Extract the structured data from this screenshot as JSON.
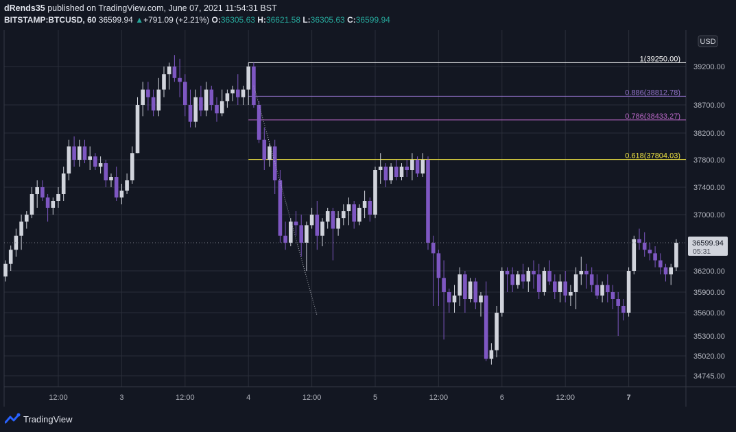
{
  "header": {
    "published_by": "dRends35",
    "published_text": " published on TradingView.com, June 07, 2021 11:54:31 BST",
    "symbol": "BITSTAMP:BTCUSD, 60",
    "last": "36599.94",
    "change_arrow": "▲",
    "change": "+791.09 (+2.21%)",
    "o_label": "O:",
    "o_value": "36305.63",
    "h_label": "H:",
    "h_value": "36621.58",
    "l_label": "L:",
    "l_value": "36305.63",
    "c_label": "C:",
    "c_value": "36599.94"
  },
  "footer": {
    "brand": "TradingView"
  },
  "colors": {
    "background": "#131722",
    "grid": "#2a2e39",
    "up_candle": "#d1d4dc",
    "down_candle": "#7e57c2",
    "fib_1": "#ffffff",
    "fib_0886": "#9575cd",
    "fib_0786": "#ba68c8",
    "fib_0618": "#f0e442",
    "price_tag_bg": "#d1d4dc"
  },
  "chart_data": {
    "type": "candlestick",
    "currency_label": "USD",
    "price_tag": {
      "price": "36599.94",
      "countdown": "05:31"
    },
    "y_ticks": [
      39200,
      38700,
      38200,
      37800,
      37400,
      37000,
      36200,
      35900,
      35600,
      35300,
      35020,
      34745
    ],
    "y_tick_labels": [
      "39200.00",
      "38700.00",
      "38200.00",
      "37800.00",
      "37400.00",
      "37000.00",
      "36200.00",
      "35900.00",
      "35600.00",
      "35300.00",
      "35020.00",
      "34745.00"
    ],
    "x_ticks": [
      {
        "bar": 10,
        "label": "12:00"
      },
      {
        "bar": 22,
        "label": "3"
      },
      {
        "bar": 34,
        "label": "12:00"
      },
      {
        "bar": 46,
        "label": "4"
      },
      {
        "bar": 58,
        "label": "12:00"
      },
      {
        "bar": 70,
        "label": "5"
      },
      {
        "bar": 82,
        "label": "12:00"
      },
      {
        "bar": 94,
        "label": "6"
      },
      {
        "bar": 106,
        "label": "12:00"
      },
      {
        "bar": 118,
        "label": "7"
      }
    ],
    "fib_levels": [
      {
        "ratio": "1",
        "price": 39250.0,
        "label": "1(39250.00)",
        "color": "#ffffff"
      },
      {
        "ratio": "0.886",
        "price": 38812.78,
        "label": "0.886(38812.78)",
        "color": "#9575cd"
      },
      {
        "ratio": "0.786",
        "price": 38433.27,
        "label": "0.786(38433.27)",
        "color": "#ba68c8"
      },
      {
        "ratio": "0.618",
        "price": 37804.03,
        "label": "0.618(37804.03)",
        "color": "#f0e442"
      }
    ],
    "fib_start_bar": 46,
    "trend_line": [
      {
        "bar": 47,
        "price": 38950
      },
      {
        "bar": 59,
        "price": 35560
      }
    ],
    "candles": [
      [
        36120,
        36350,
        36050,
        36300
      ],
      [
        36300,
        36560,
        36200,
        36500
      ],
      [
        36500,
        36800,
        36400,
        36700
      ],
      [
        36700,
        37000,
        36500,
        36900
      ],
      [
        36900,
        37050,
        36800,
        37000
      ],
      [
        37000,
        37400,
        36950,
        37300
      ],
      [
        37300,
        37500,
        37100,
        37400
      ],
      [
        37400,
        37500,
        37200,
        37250
      ],
      [
        37250,
        37300,
        36900,
        37100
      ],
      [
        37100,
        37250,
        37000,
        37200
      ],
      [
        37200,
        37400,
        37100,
        37300
      ],
      [
        37300,
        37700,
        37200,
        37600
      ],
      [
        37600,
        38100,
        37500,
        38000
      ],
      [
        38000,
        38150,
        37700,
        37800
      ],
      [
        37800,
        38100,
        37700,
        38000
      ],
      [
        38000,
        38100,
        37750,
        37800
      ],
      [
        37800,
        38000,
        37650,
        37850
      ],
      [
        37850,
        37900,
        37650,
        37700
      ],
      [
        37700,
        37850,
        37600,
        37750
      ],
      [
        37750,
        37800,
        37400,
        37500
      ],
      [
        37500,
        37600,
        37400,
        37550
      ],
      [
        37550,
        37700,
        37200,
        37250
      ],
      [
        37250,
        37450,
        37150,
        37350
      ],
      [
        37350,
        37600,
        37300,
        37500
      ],
      [
        37500,
        38000,
        37450,
        37900
      ],
      [
        37900,
        38800,
        37900,
        38700
      ],
      [
        38700,
        39000,
        38500,
        38900
      ],
      [
        38900,
        39000,
        38600,
        38800
      ],
      [
        38800,
        38900,
        38500,
        38600
      ],
      [
        38600,
        39050,
        38500,
        38900
      ],
      [
        38900,
        39200,
        38800,
        39100
      ],
      [
        39100,
        39250,
        38900,
        39200
      ],
      [
        39200,
        39350,
        39000,
        39050
      ],
      [
        39050,
        39300,
        38800,
        39000
      ],
      [
        39000,
        39100,
        38500,
        38700
      ],
      [
        38700,
        38900,
        38300,
        38400
      ],
      [
        38400,
        38900,
        38300,
        38800
      ],
      [
        38800,
        38950,
        38500,
        38600
      ],
      [
        38600,
        39000,
        38500,
        38900
      ],
      [
        38900,
        38950,
        38600,
        38700
      ],
      [
        38700,
        38800,
        38400,
        38550
      ],
      [
        38550,
        38900,
        38500,
        38750
      ],
      [
        38750,
        38900,
        38650,
        38850
      ],
      [
        38850,
        38950,
        38750,
        38900
      ],
      [
        38900,
        39100,
        38700,
        38800
      ],
      [
        38800,
        38950,
        38700,
        38900
      ],
      [
        38900,
        39250,
        38700,
        39200
      ],
      [
        39200,
        39250,
        38650,
        38700
      ],
      [
        38700,
        38750,
        38050,
        38100
      ],
      [
        38100,
        38300,
        37650,
        37800
      ],
      [
        37800,
        38050,
        37700,
        38000
      ],
      [
        38000,
        38100,
        37300,
        37500
      ],
      [
        37500,
        37650,
        36600,
        36700
      ],
      [
        36700,
        36900,
        36500,
        36600
      ],
      [
        36600,
        36950,
        36550,
        36900
      ],
      [
        36900,
        37050,
        36700,
        36850
      ],
      [
        36850,
        37000,
        36400,
        36600
      ],
      [
        36600,
        36900,
        36200,
        36850
      ],
      [
        36850,
        37100,
        36800,
        37000
      ],
      [
        37000,
        37200,
        36500,
        36700
      ],
      [
        36700,
        36950,
        36550,
        36900
      ],
      [
        36900,
        37100,
        36800,
        37050
      ],
      [
        37050,
        37100,
        36350,
        36800
      ],
      [
        36800,
        37050,
        36700,
        36950
      ],
      [
        36950,
        37150,
        36850,
        37050
      ],
      [
        37050,
        37250,
        36850,
        37150
      ],
      [
        37150,
        37200,
        36800,
        36900
      ],
      [
        36900,
        37150,
        36850,
        37100
      ],
      [
        37100,
        37350,
        36950,
        37200
      ],
      [
        37200,
        37250,
        36900,
        37000
      ],
      [
        37000,
        37700,
        36950,
        37650
      ],
      [
        37650,
        37900,
        37450,
        37700
      ],
      [
        37700,
        37750,
        37400,
        37500
      ],
      [
        37500,
        37750,
        37450,
        37700
      ],
      [
        37700,
        37800,
        37500,
        37550
      ],
      [
        37550,
        37750,
        37500,
        37700
      ],
      [
        37700,
        37800,
        37550,
        37650
      ],
      [
        37650,
        37900,
        37500,
        37800
      ],
      [
        37800,
        37850,
        37550,
        37600
      ],
      [
        37600,
        37900,
        37550,
        37800
      ],
      [
        37800,
        37850,
        36500,
        36600
      ],
      [
        36600,
        36700,
        35700,
        36450
      ],
      [
        36450,
        36500,
        35700,
        36100
      ],
      [
        36100,
        36350,
        35250,
        35900
      ],
      [
        35900,
        35950,
        35600,
        35750
      ],
      [
        35750,
        36000,
        35600,
        35850
      ],
      [
        35850,
        36250,
        35700,
        36150
      ],
      [
        36150,
        36200,
        35600,
        35800
      ],
      [
        35800,
        36100,
        35750,
        36050
      ],
      [
        36050,
        36100,
        35650,
        35750
      ],
      [
        35750,
        35900,
        35550,
        35850
      ],
      [
        35850,
        36050,
        34950,
        34980
      ],
      [
        34980,
        35200,
        34900,
        35100
      ],
      [
        35100,
        35700,
        35000,
        35600
      ],
      [
        35600,
        36250,
        35550,
        36200
      ],
      [
        36200,
        36250,
        35900,
        36150
      ],
      [
        36150,
        36250,
        35900,
        36000
      ],
      [
        36000,
        36200,
        35950,
        36150
      ],
      [
        36150,
        36300,
        35950,
        36050
      ],
      [
        36050,
        36250,
        35900,
        36200
      ],
      [
        36200,
        36350,
        35950,
        36150
      ],
      [
        36150,
        36300,
        35800,
        35900
      ],
      [
        35900,
        36250,
        35850,
        36200
      ],
      [
        36200,
        36350,
        36000,
        36050
      ],
      [
        36050,
        36150,
        35800,
        35900
      ],
      [
        35900,
        36150,
        35750,
        36050
      ],
      [
        36050,
        36200,
        35750,
        35850
      ],
      [
        35850,
        36000,
        35700,
        35900
      ],
      [
        35900,
        36250,
        35650,
        36150
      ],
      [
        36150,
        36400,
        36000,
        36200
      ],
      [
        36200,
        36300,
        35950,
        36150
      ],
      [
        36150,
        36250,
        35900,
        36000
      ],
      [
        36000,
        36150,
        35800,
        35850
      ],
      [
        35850,
        36050,
        35750,
        36000
      ],
      [
        36000,
        36150,
        35750,
        35900
      ],
      [
        35900,
        36000,
        35650,
        35800
      ],
      [
        35800,
        35900,
        35300,
        35700
      ],
      [
        35700,
        35800,
        35500,
        35600
      ],
      [
        35600,
        36250,
        35550,
        36200
      ],
      [
        36200,
        36700,
        36150,
        36650
      ],
      [
        36650,
        36800,
        36500,
        36600
      ],
      [
        36600,
        36750,
        36400,
        36500
      ],
      [
        36500,
        36600,
        36350,
        36450
      ],
      [
        36450,
        36550,
        36250,
        36350
      ],
      [
        36350,
        36450,
        36150,
        36250
      ],
      [
        36250,
        36300,
        36050,
        36150
      ],
      [
        36150,
        36300,
        36000,
        36250
      ],
      [
        36250,
        36650,
        36200,
        36600
      ]
    ]
  }
}
